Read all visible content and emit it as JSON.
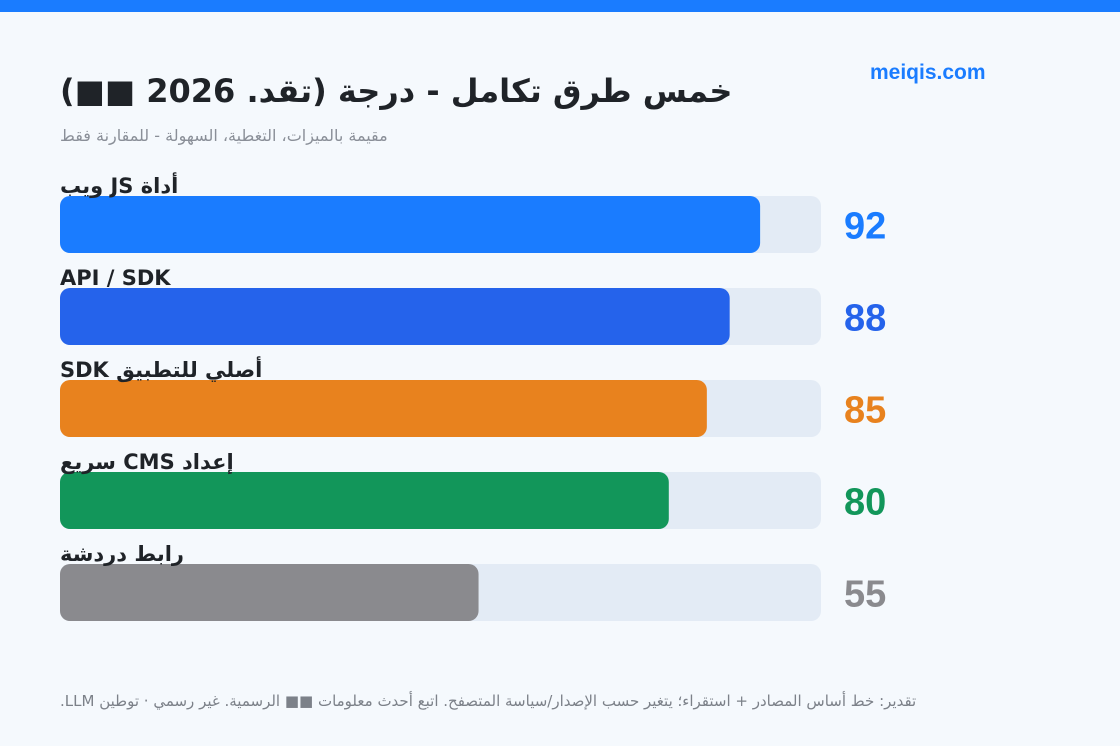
{
  "page": {
    "brand": "meiqis.com",
    "footnote": "تقدير: خط أساس المصادر + استقراء؛ يتغير حسب الإصدار/سياسة المتصفح. اتبع أحدث معلومات ■■ الرسمية. غير رسمي · توطين LLM."
  },
  "colors": {
    "track": "#e3ebf5",
    "background": "#f5f9fd",
    "accent": "#1a7cff"
  },
  "chart_data": {
    "type": "bar",
    "orientation": "horizontal",
    "title": "خمس طرق تكامل - درجة (تقد. 2026 ■■)",
    "subtitle": "مقيمة بالميزات، التغطية، السهولة - للمقارنة فقط",
    "xlim": [
      0,
      100
    ],
    "grid": false,
    "legend": "none",
    "categories": [
      "أداة JS ويب",
      "API / SDK",
      "SDK أصلي للتطبيق",
      "إعداد CMS سريع",
      "رابط دردشة"
    ],
    "values": [
      92,
      88,
      85,
      80,
      55
    ],
    "colors": [
      "#1a7cff",
      "#2563eb",
      "#e8821e",
      "#12965a",
      "#8a8a8e"
    ]
  }
}
